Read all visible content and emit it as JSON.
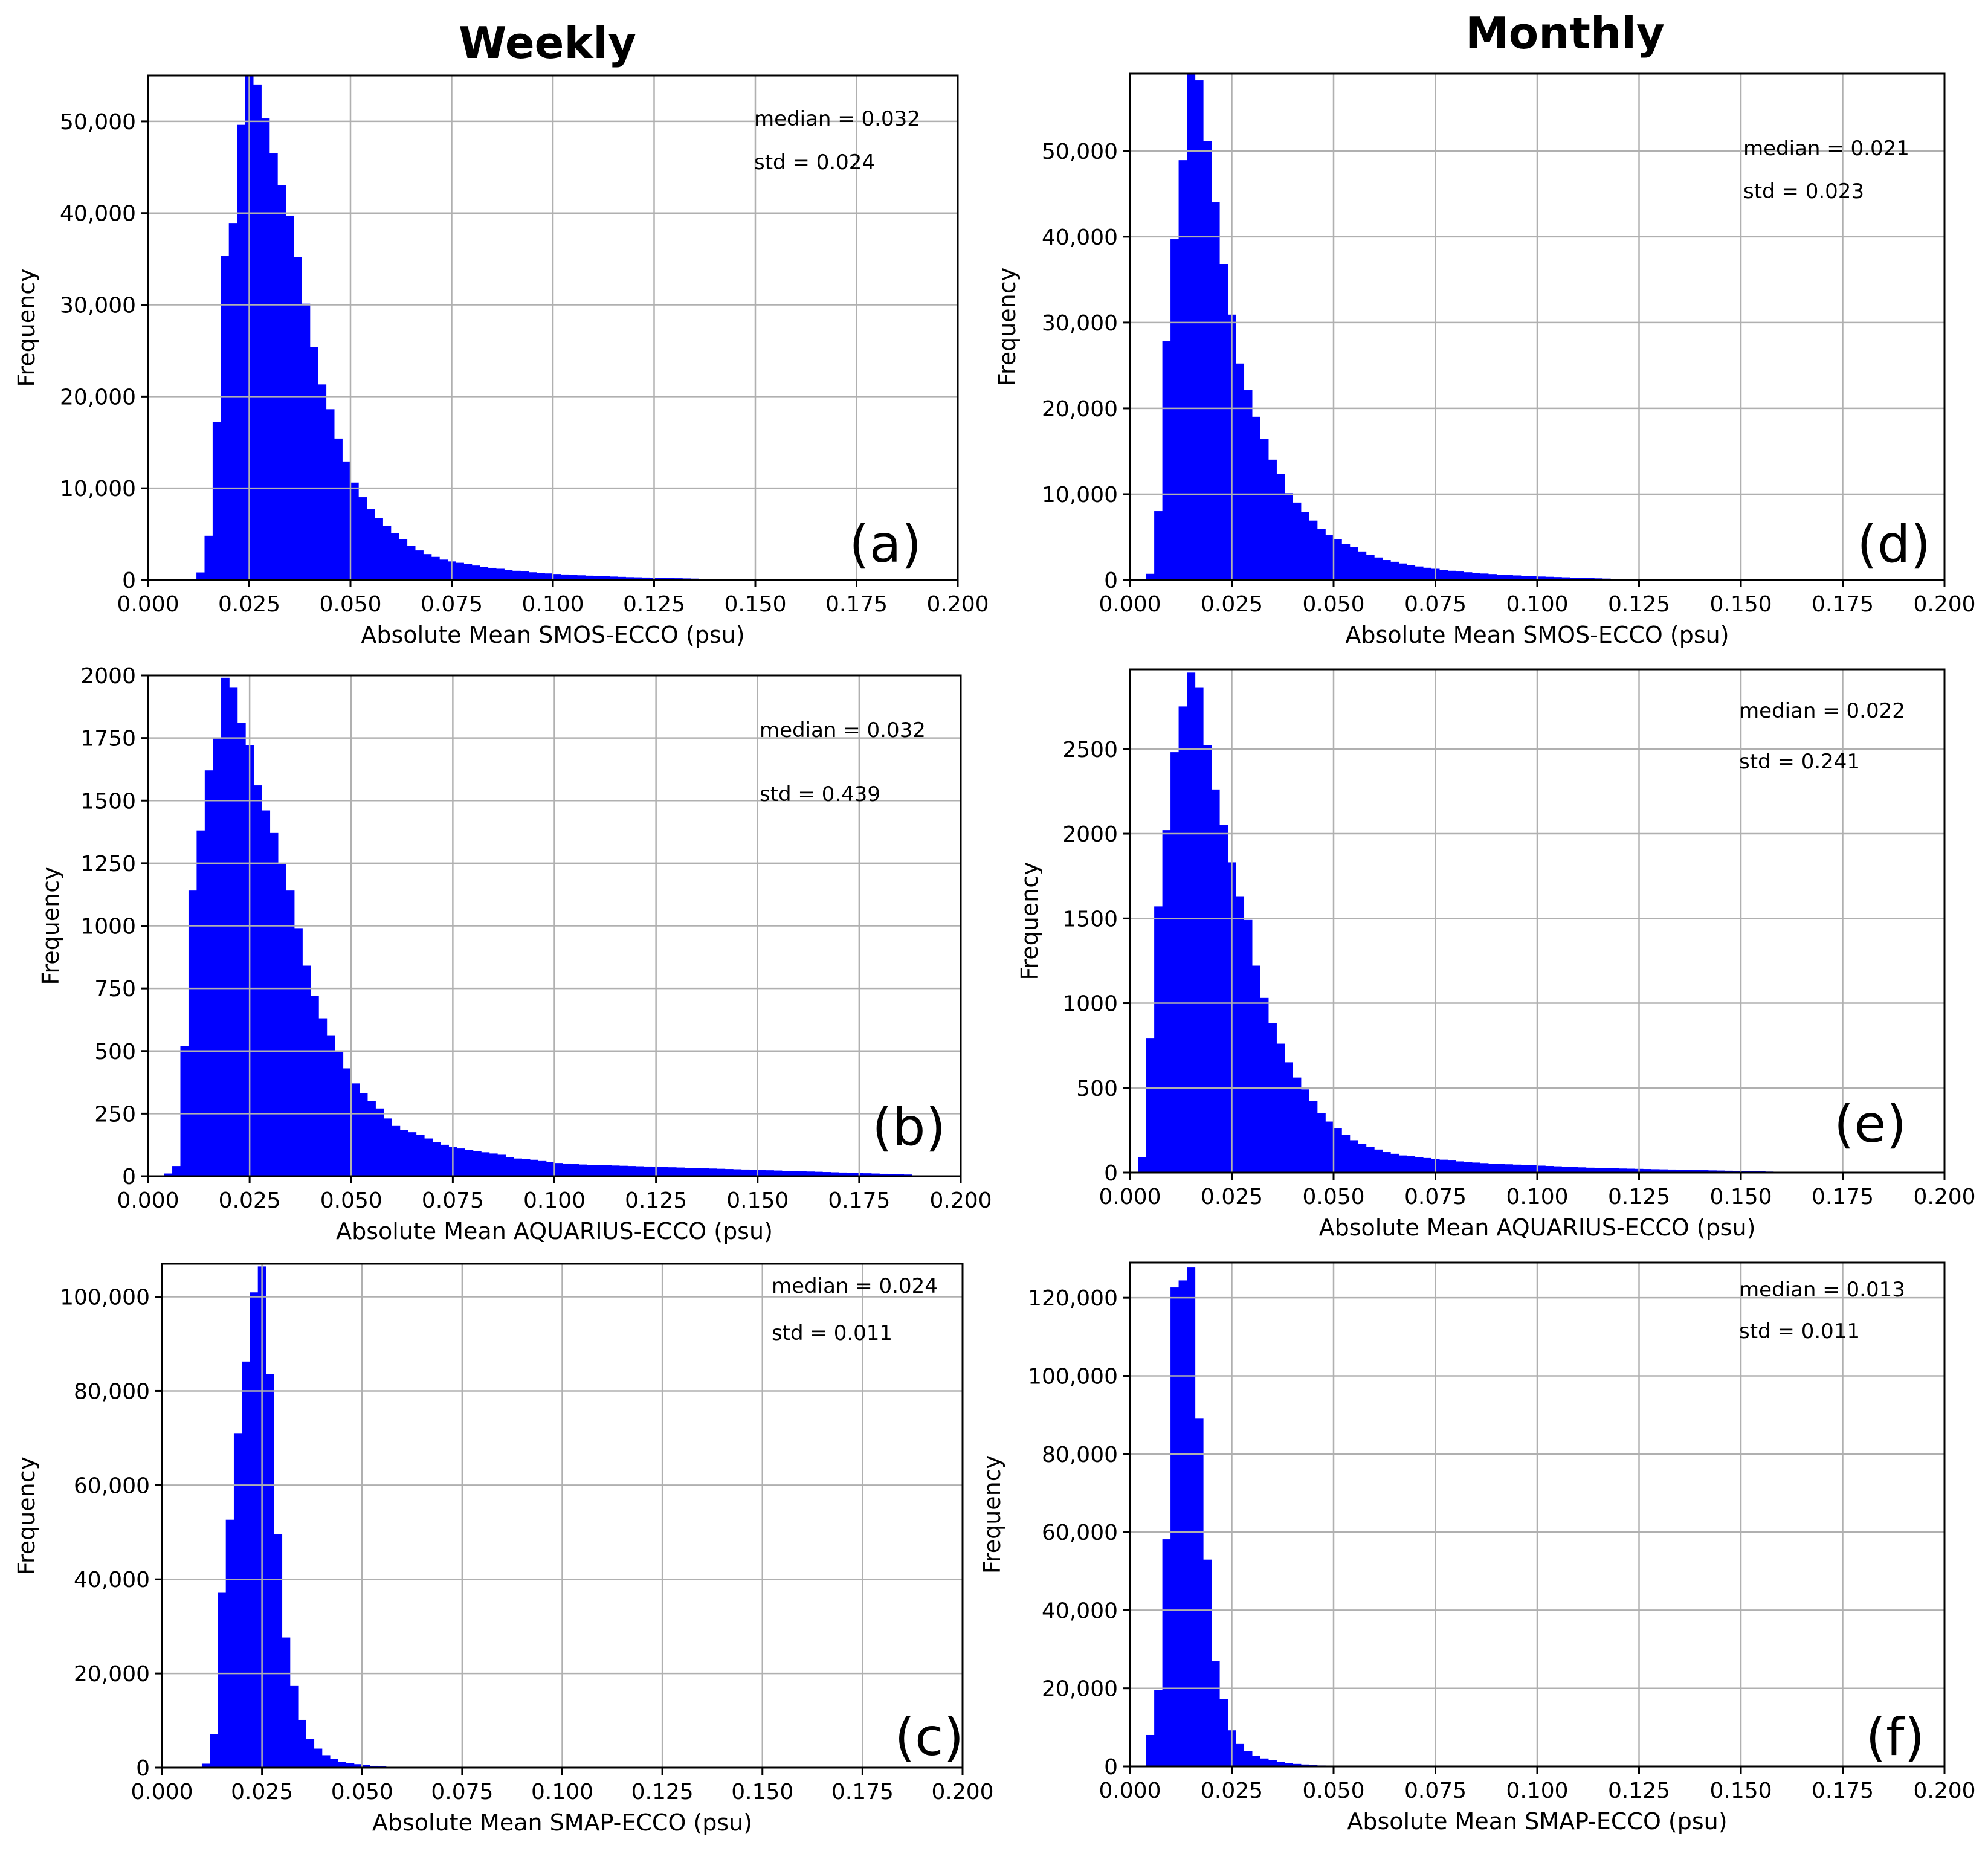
{
  "titles": {
    "weekly": "Weekly",
    "monthly": "Monthly"
  },
  "chart_data": [
    {
      "type": "bar",
      "panel": "(a)",
      "xlabel": "Absolute Mean SMOS-ECCO (psu)",
      "ylabel": "Frequency",
      "xlim": [
        0,
        0.2
      ],
      "ylim": [
        0,
        55000
      ],
      "grid": true,
      "xticks": [
        0,
        0.025,
        0.05,
        0.075,
        0.1,
        0.125,
        0.15,
        0.175,
        0.2
      ],
      "xtick_labels": [
        "0.000",
        "0.025",
        "0.050",
        "0.075",
        "0.100",
        "0.125",
        "0.150",
        "0.175",
        "0.200"
      ],
      "yticks": [
        0,
        10000,
        20000,
        30000,
        40000,
        50000
      ],
      "ytick_labels": [
        "0",
        "10,000",
        "20,000",
        "30,000",
        "40,000",
        "50,000"
      ],
      "annotations": [
        "median = 0.032",
        "std = 0.024"
      ],
      "bin_start": 0.012,
      "bin_width": 0.002,
      "values": [
        800,
        4800,
        17200,
        35300,
        38900,
        49600,
        55200,
        54000,
        50300,
        46500,
        43000,
        39700,
        35200,
        30100,
        25400,
        21300,
        18600,
        15400,
        12900,
        10600,
        9000,
        7700,
        6700,
        5900,
        5100,
        4400,
        3700,
        3200,
        2800,
        2500,
        2200,
        2000,
        1850,
        1700,
        1550,
        1400,
        1300,
        1200,
        1080,
        980,
        900,
        820,
        750,
        690,
        630,
        580,
        530,
        490,
        450,
        410,
        380,
        350,
        320,
        290,
        270,
        250,
        230,
        210,
        190,
        170,
        150,
        130,
        110,
        90,
        70,
        50,
        30
      ]
    },
    {
      "type": "bar",
      "panel": "(b)",
      "xlabel": "Absolute Mean AQUARIUS-ECCO (psu)",
      "ylabel": "Frequency",
      "xlim": [
        0,
        0.2
      ],
      "ylim": [
        0,
        2000
      ],
      "grid": true,
      "xticks": [
        0,
        0.025,
        0.05,
        0.075,
        0.1,
        0.125,
        0.15,
        0.175,
        0.2
      ],
      "xtick_labels": [
        "0.000",
        "0.025",
        "0.050",
        "0.075",
        "0.100",
        "0.125",
        "0.150",
        "0.175",
        "0.200"
      ],
      "yticks": [
        0,
        250,
        500,
        750,
        1000,
        1250,
        1500,
        1750,
        2000
      ],
      "ytick_labels": [
        "0",
        "250",
        "500",
        "750",
        "1000",
        "1250",
        "1500",
        "1750",
        "2000"
      ],
      "annotations": [
        "median = 0.032",
        "std = 0.439"
      ],
      "bin_start": 0.004,
      "bin_width": 0.002,
      "values": [
        10,
        40,
        520,
        1140,
        1380,
        1620,
        1750,
        1990,
        1950,
        1810,
        1720,
        1560,
        1460,
        1370,
        1250,
        1140,
        990,
        840,
        720,
        630,
        560,
        500,
        430,
        370,
        330,
        300,
        270,
        230,
        200,
        185,
        175,
        165,
        150,
        135,
        125,
        115,
        110,
        105,
        100,
        95,
        90,
        85,
        75,
        70,
        68,
        65,
        60,
        55,
        52,
        50,
        48,
        46,
        45,
        44,
        43,
        42,
        41,
        40,
        39,
        38,
        37,
        36,
        35,
        34,
        33,
        32,
        31,
        30,
        29,
        28,
        27,
        26,
        25,
        24,
        23,
        22,
        21,
        20,
        19,
        18,
        17,
        16,
        15,
        14,
        13,
        12,
        11,
        10,
        9,
        8,
        7,
        6
      ]
    },
    {
      "type": "bar",
      "panel": "(c)",
      "xlabel": "Absolute Mean SMAP-ECCO (psu)",
      "ylabel": "Frequency",
      "xlim": [
        0,
        0.2
      ],
      "ylim": [
        0,
        107000
      ],
      "grid": true,
      "xticks": [
        0,
        0.025,
        0.05,
        0.075,
        0.1,
        0.125,
        0.15,
        0.175,
        0.2
      ],
      "xtick_labels": [
        "0.000",
        "0.025",
        "0.050",
        "0.075",
        "0.100",
        "0.125",
        "0.150",
        "0.175",
        "0.200"
      ],
      "yticks": [
        0,
        20000,
        40000,
        60000,
        80000,
        100000
      ],
      "ytick_labels": [
        "0",
        "20,000",
        "40,000",
        "60,000",
        "80,000",
        "100,000"
      ],
      "annotations": [
        "median = 0.024",
        "std = 0.011"
      ],
      "bin_start": 0.01,
      "bin_width": 0.002,
      "values": [
        800,
        7100,
        37100,
        52600,
        71000,
        86200,
        100900,
        106400,
        83600,
        49500,
        27600,
        17300,
        10100,
        6000,
        4000,
        2600,
        1800,
        1200,
        900,
        700,
        500,
        350,
        250,
        150,
        100,
        60,
        30
      ]
    },
    {
      "type": "bar",
      "panel": "(d)",
      "xlabel": "Absolute Mean SMOS-ECCO (psu)",
      "ylabel": "Frequency",
      "xlim": [
        0,
        0.2
      ],
      "ylim": [
        0,
        59000
      ],
      "grid": true,
      "xticks": [
        0,
        0.025,
        0.05,
        0.075,
        0.1,
        0.125,
        0.15,
        0.175,
        0.2
      ],
      "xtick_labels": [
        "0.000",
        "0.025",
        "0.050",
        "0.075",
        "0.100",
        "0.125",
        "0.150",
        "0.175",
        "0.200"
      ],
      "yticks": [
        0,
        10000,
        20000,
        30000,
        40000,
        50000
      ],
      "ytick_labels": [
        "0",
        "10,000",
        "20,000",
        "30,000",
        "40,000",
        "50,000"
      ],
      "annotations": [
        "median = 0.021",
        "std = 0.023"
      ],
      "bin_start": 0.004,
      "bin_width": 0.002,
      "values": [
        700,
        8000,
        27800,
        39700,
        48900,
        58900,
        58200,
        51100,
        44000,
        36800,
        30900,
        25200,
        22100,
        19000,
        16400,
        14000,
        12300,
        10100,
        9000,
        7900,
        6900,
        5900,
        5200,
        4700,
        4200,
        3800,
        3300,
        2900,
        2600,
        2300,
        2100,
        1900,
        1700,
        1550,
        1400,
        1280,
        1160,
        1050,
        960,
        880,
        800,
        730,
        670,
        610,
        560,
        510,
        460,
        420,
        380,
        350,
        320,
        290,
        260,
        230,
        200,
        170,
        140,
        110,
        80
      ]
    },
    {
      "type": "bar",
      "panel": "(e)",
      "xlabel": "Absolute Mean AQUARIUS-ECCO (psu)",
      "ylabel": "Frequency",
      "xlim": [
        0,
        0.2
      ],
      "ylim": [
        0,
        2970
      ],
      "grid": true,
      "xticks": [
        0,
        0.025,
        0.05,
        0.075,
        0.1,
        0.125,
        0.15,
        0.175,
        0.2
      ],
      "xtick_labels": [
        "0.000",
        "0.025",
        "0.050",
        "0.075",
        "0.100",
        "0.125",
        "0.150",
        "0.175",
        "0.200"
      ],
      "yticks": [
        0,
        500,
        1000,
        1500,
        2000,
        2500
      ],
      "ytick_labels": [
        "0",
        "500",
        "1000",
        "1500",
        "2000",
        "2500"
      ],
      "annotations": [
        "median = 0.022",
        "std = 0.241"
      ],
      "bin_start": 0.002,
      "bin_width": 0.002,
      "values": [
        90,
        790,
        1570,
        2020,
        2480,
        2750,
        2950,
        2860,
        2520,
        2260,
        2050,
        1830,
        1630,
        1490,
        1220,
        1030,
        880,
        760,
        650,
        560,
        490,
        420,
        350,
        300,
        260,
        220,
        190,
        170,
        150,
        135,
        120,
        110,
        100,
        95,
        90,
        85,
        80,
        75,
        70,
        65,
        60,
        58,
        55,
        52,
        50,
        48,
        46,
        44,
        42,
        40,
        38,
        36,
        34,
        32,
        30,
        28,
        26,
        25,
        24,
        23,
        22,
        21,
        20,
        19,
        18,
        17,
        16,
        15,
        14,
        13,
        12,
        11,
        10,
        9,
        8,
        7,
        6,
        5,
        4,
        4,
        3,
        3,
        2,
        2,
        2,
        1,
        1
      ]
    },
    {
      "type": "bar",
      "panel": "(f)",
      "xlabel": "Absolute Mean SMAP-ECCO (psu)",
      "ylabel": "Frequency",
      "xlim": [
        0,
        0.2
      ],
      "ylim": [
        0,
        129000
      ],
      "grid": true,
      "xticks": [
        0,
        0.025,
        0.05,
        0.075,
        0.1,
        0.125,
        0.15,
        0.175,
        0.2
      ],
      "xtick_labels": [
        "0.000",
        "0.025",
        "0.050",
        "0.075",
        "0.100",
        "0.125",
        "0.150",
        "0.175",
        "0.200"
      ],
      "yticks": [
        0,
        20000,
        40000,
        60000,
        80000,
        100000,
        120000
      ],
      "ytick_labels": [
        "0",
        "20,000",
        "40,000",
        "60,000",
        "80,000",
        "100,000",
        "120,000"
      ],
      "annotations": [
        "median = 0.013",
        "std = 0.011"
      ],
      "bin_start": 0.004,
      "bin_width": 0.002,
      "values": [
        8000,
        19500,
        58100,
        122600,
        124400,
        127700,
        89000,
        52900,
        26900,
        17200,
        9200,
        5700,
        3900,
        2700,
        2000,
        1500,
        1100,
        800,
        600,
        450,
        300,
        200,
        120,
        70,
        40
      ]
    }
  ]
}
